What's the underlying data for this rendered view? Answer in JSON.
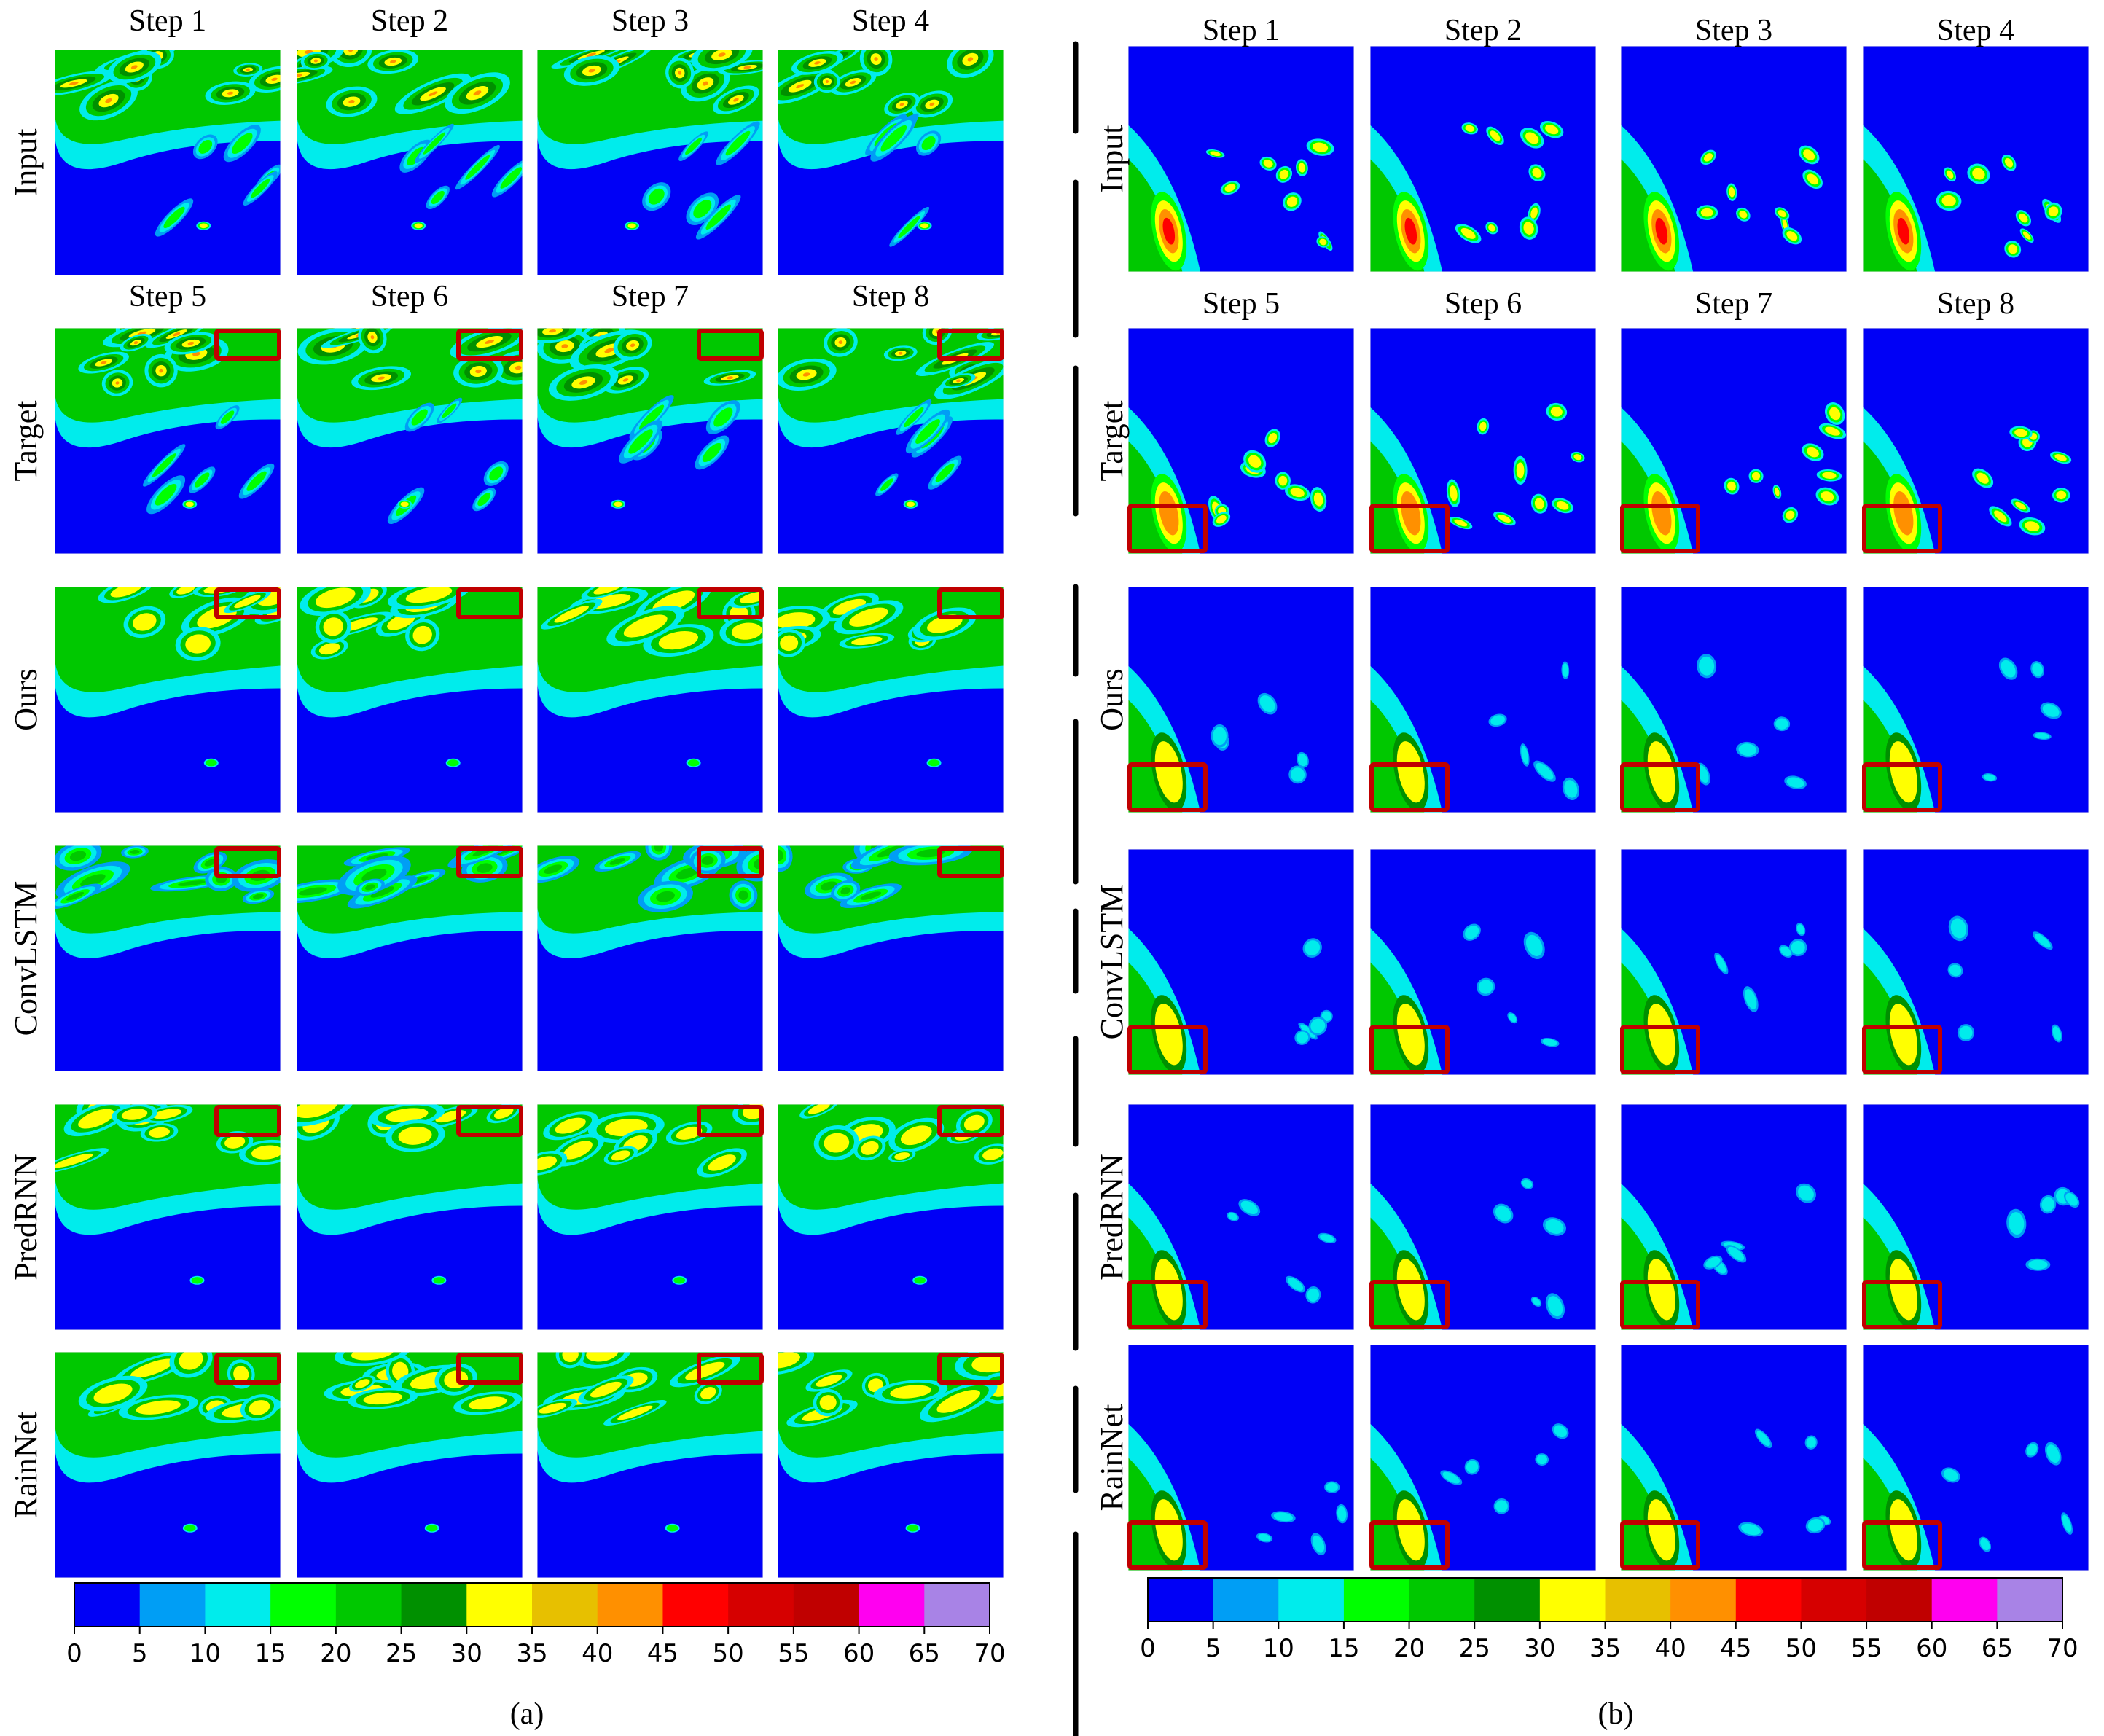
{
  "panels": [
    {
      "label": "(a)",
      "step_headers": [
        [
          "Step 1",
          "Step 2",
          "Step 3",
          "Step 4"
        ],
        [
          "Step 5",
          "Step 6",
          "Step 7",
          "Step 8"
        ]
      ],
      "rows": [
        "Input",
        "Target",
        "Ours",
        "ConvLSTM",
        "PredRNN",
        "RainNet"
      ]
    },
    {
      "label": "(b)",
      "step_headers": [
        [
          "Step 1",
          "Step 2",
          "Step 3",
          "Step 4"
        ],
        [
          "Step 5",
          "Step 6",
          "Step 7",
          "Step 8"
        ]
      ],
      "rows": [
        "Input",
        "Target",
        "Ours",
        "ConvLSTM",
        "PredRNN",
        "RainNet"
      ]
    }
  ],
  "colorbar": {
    "ticks": [
      "0",
      "5",
      "10",
      "15",
      "20",
      "25",
      "30",
      "35",
      "40",
      "45",
      "50",
      "55",
      "60",
      "65",
      "70"
    ],
    "colors": [
      "#0000F6",
      "#009EF5",
      "#00ECEC",
      "#00FF00",
      "#00C800",
      "#009000",
      "#FFFF00",
      "#E7C000",
      "#FF9000",
      "#FF0000",
      "#D60000",
      "#C00000",
      "#FF00F0",
      "#A883E6"
    ]
  },
  "highlight_color": "#C00000",
  "map_palette": {
    "blue": "#0000F6",
    "light_blue": "#009EF5",
    "cyan": "#00ECEC",
    "green": "#00FF00",
    "mid_green": "#00C800",
    "dark_green": "#009000",
    "yellow": "#FFFF00",
    "gold": "#E7C000",
    "orange": "#FF9000",
    "red": "#FF0000"
  }
}
